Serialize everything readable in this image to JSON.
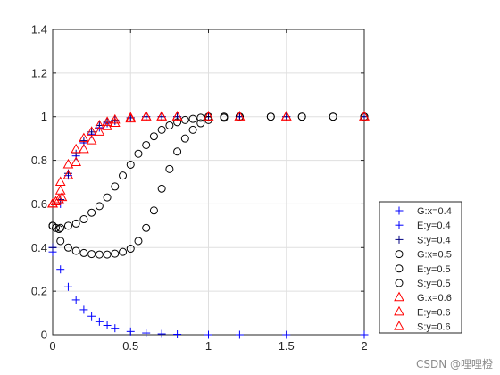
{
  "chart_data": {
    "type": "scatter",
    "title": "",
    "xlabel": "",
    "ylabel": "",
    "xlim": [
      0,
      2
    ],
    "ylim": [
      0,
      1.4
    ],
    "xticks": [
      0,
      0.5,
      1,
      1.5,
      2
    ],
    "xtick_labels": [
      "0",
      "0.5",
      "1",
      "1.5",
      "2"
    ],
    "yticks": [
      0,
      0.2,
      0.4,
      0.6,
      0.8,
      1,
      1.2,
      1.4
    ],
    "ytick_labels": [
      "0",
      "0.2",
      "0.4",
      "0.6",
      "0.8",
      "1",
      "1.2",
      "1.4"
    ],
    "grid": true,
    "legend_position": "bottom-right outside",
    "series": [
      {
        "name": "G:x=0.4",
        "marker": "plus",
        "color": "#0000ff",
        "x": [
          0,
          0.05,
          0.1,
          0.15,
          0.2,
          0.25,
          0.3,
          0.35,
          0.4,
          0.5,
          0.6,
          0.7,
          0.8,
          1,
          1.2,
          1.5,
          2
        ],
        "y": [
          0.4,
          0.3,
          0.22,
          0.16,
          0.115,
          0.085,
          0.06,
          0.043,
          0.03,
          0.015,
          0.008,
          0.004,
          0.002,
          0,
          0,
          0,
          0
        ]
      },
      {
        "name": "E:y=0.4",
        "marker": "plus",
        "color": "#0000ff",
        "x": [
          0,
          0.05,
          0.1,
          0.15,
          0.2,
          0.25,
          0.3,
          0.35,
          0.4,
          0.5,
          0.6,
          0.7,
          0.8,
          1,
          1.2,
          1.5,
          2
        ],
        "y": [
          0.38,
          0.6,
          0.73,
          0.82,
          0.88,
          0.92,
          0.95,
          0.97,
          0.98,
          0.995,
          1,
          1,
          1,
          1,
          1,
          1,
          1
        ]
      },
      {
        "name": "S:y=0.4",
        "marker": "plus",
        "color": "#000080",
        "x": [
          0,
          0.05,
          0.1,
          0.15,
          0.2,
          0.25,
          0.3,
          0.35,
          0.4,
          0.5,
          0.6,
          0.7,
          0.8,
          1,
          1.2,
          1.5,
          2
        ],
        "y": [
          0.4,
          0.62,
          0.74,
          0.83,
          0.89,
          0.93,
          0.96,
          0.975,
          0.985,
          0.995,
          1,
          1,
          1,
          1,
          1,
          1,
          1
        ]
      },
      {
        "name": "G:x=0.5",
        "marker": "circle",
        "color": "#000000",
        "x": [
          0,
          0.05,
          0.1,
          0.15,
          0.2,
          0.25,
          0.3,
          0.35,
          0.4,
          0.45,
          0.5,
          0.55,
          0.6,
          0.65,
          0.7,
          0.75,
          0.8,
          0.85,
          0.9,
          0.95,
          1,
          1.1,
          1.2,
          1.4,
          1.6,
          1.8,
          2
        ],
        "y": [
          0.5,
          0.43,
          0.4,
          0.385,
          0.375,
          0.37,
          0.368,
          0.368,
          0.372,
          0.38,
          0.395,
          0.43,
          0.49,
          0.57,
          0.67,
          0.76,
          0.84,
          0.9,
          0.94,
          0.97,
          0.985,
          0.995,
          1,
          1,
          1,
          1,
          1
        ]
      },
      {
        "name": "E:y=0.5",
        "marker": "circle",
        "color": "#000000",
        "x": [
          0,
          0.05,
          0.1,
          0.15,
          0.2,
          0.25,
          0.3,
          0.35,
          0.4,
          0.45,
          0.5,
          0.55,
          0.6,
          0.65,
          0.7,
          0.75,
          0.8,
          0.85,
          0.9,
          0.95,
          1,
          1.1,
          1.2,
          1.4,
          1.6,
          1.8,
          2
        ],
        "y": [
          0.5,
          0.49,
          0.5,
          0.51,
          0.53,
          0.56,
          0.59,
          0.63,
          0.68,
          0.73,
          0.78,
          0.83,
          0.87,
          0.91,
          0.94,
          0.96,
          0.975,
          0.985,
          0.99,
          0.995,
          1,
          1,
          1,
          1,
          1,
          1,
          1
        ]
      },
      {
        "name": "S:y=0.5",
        "marker": "circle",
        "color": "#000000",
        "x": [
          0,
          0.02,
          0.04
        ],
        "y": [
          0.5,
          0.49,
          0.485
        ]
      },
      {
        "name": "G:x=0.6",
        "marker": "triangle",
        "color": "#ff0000",
        "x": [
          0,
          0.05,
          0.1,
          0.15,
          0.2,
          0.25,
          0.3,
          0.35,
          0.4,
          0.5,
          0.6,
          0.7,
          0.8,
          1,
          1.2,
          1.5,
          2
        ],
        "y": [
          0.6,
          0.7,
          0.78,
          0.85,
          0.9,
          0.93,
          0.96,
          0.975,
          0.985,
          0.995,
          1,
          1,
          1,
          1,
          1,
          1,
          1
        ]
      },
      {
        "name": "E:y=0.6",
        "marker": "triangle",
        "color": "#ff0000",
        "x": [
          0,
          0.05,
          0.1,
          0.15,
          0.2,
          0.25,
          0.3,
          0.35,
          0.4,
          0.5,
          0.6,
          0.7,
          0.8,
          1,
          1.2,
          1.5,
          2
        ],
        "y": [
          0.6,
          0.66,
          0.73,
          0.79,
          0.85,
          0.89,
          0.93,
          0.955,
          0.97,
          0.99,
          1,
          1,
          1,
          1,
          1,
          1,
          1
        ]
      },
      {
        "name": "S:y=0.6",
        "marker": "triangle",
        "color": "#ff0000",
        "x": [
          0,
          0.02,
          0.04,
          0.06
        ],
        "y": [
          0.6,
          0.61,
          0.62,
          0.63
        ]
      }
    ]
  },
  "watermark": "CSDN @哩哩橙",
  "colors": {
    "axis": "#262626",
    "grid": "#dfdfdf",
    "background": "#ffffff"
  }
}
